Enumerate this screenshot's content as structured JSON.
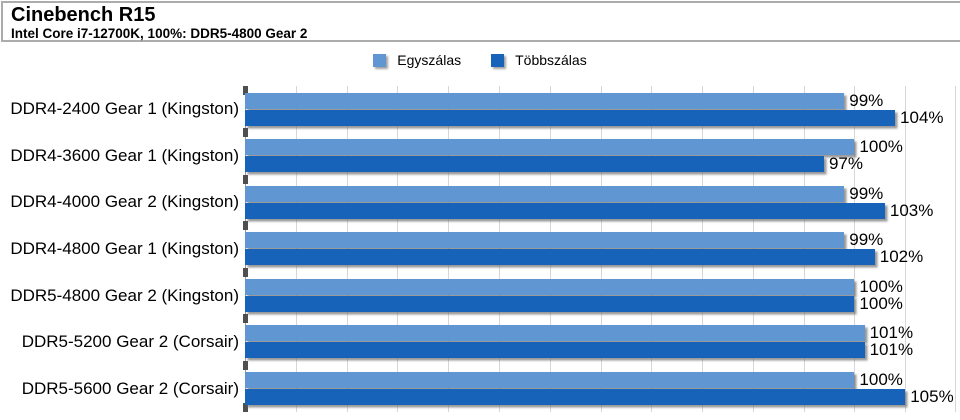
{
  "header": {
    "title": "Cinebench R15",
    "subtitle": "Intel Core i7-12700K, 100%: DDR5-4800 Gear 2"
  },
  "legend": {
    "position": "top-center",
    "items": [
      {
        "label": "Egyszálas",
        "color_key": "single"
      },
      {
        "label": "Többszálas",
        "color_key": "multi"
      }
    ]
  },
  "colors": {
    "single": "#6097d2",
    "multi": "#1663b9",
    "gridline": "#d6d6d6",
    "axis_line": "#9a9a9a",
    "tick": "#4f4f4f",
    "title_border": "#acacac",
    "text": "#000000",
    "background": "#ffffff"
  },
  "chart_data": {
    "type": "bar",
    "orientation": "horizontal",
    "title": "Cinebench R15",
    "subtitle": "Intel Core i7-12700K, 100%: DDR5-4800 Gear 2",
    "categories": [
      "DDR4-2400 Gear 1 (Kingston)",
      "DDR4-3600 Gear 1 (Kingston)",
      "DDR4-4000 Gear 2 (Kingston)",
      "DDR4-4800 Gear 1 (Kingston)",
      "DDR5-4800 Gear 2 (Kingston)",
      "DDR5-5200 Gear 2 (Corsair)",
      "DDR5-5600 Gear 2 (Corsair)"
    ],
    "series": [
      {
        "name": "Egyszálas",
        "color_key": "single",
        "values": [
          99,
          100,
          99,
          99,
          100,
          101,
          100
        ]
      },
      {
        "name": "Többszálas",
        "color_key": "multi",
        "values": [
          104,
          97,
          103,
          102,
          100,
          101,
          105
        ]
      }
    ],
    "value_suffix": "%",
    "xlabel": "",
    "ylabel": "",
    "axis": {
      "min": 40,
      "max": 110,
      "grid_step": 5,
      "grid": true,
      "tick_labels_shown": false
    },
    "legend_position": "top"
  }
}
